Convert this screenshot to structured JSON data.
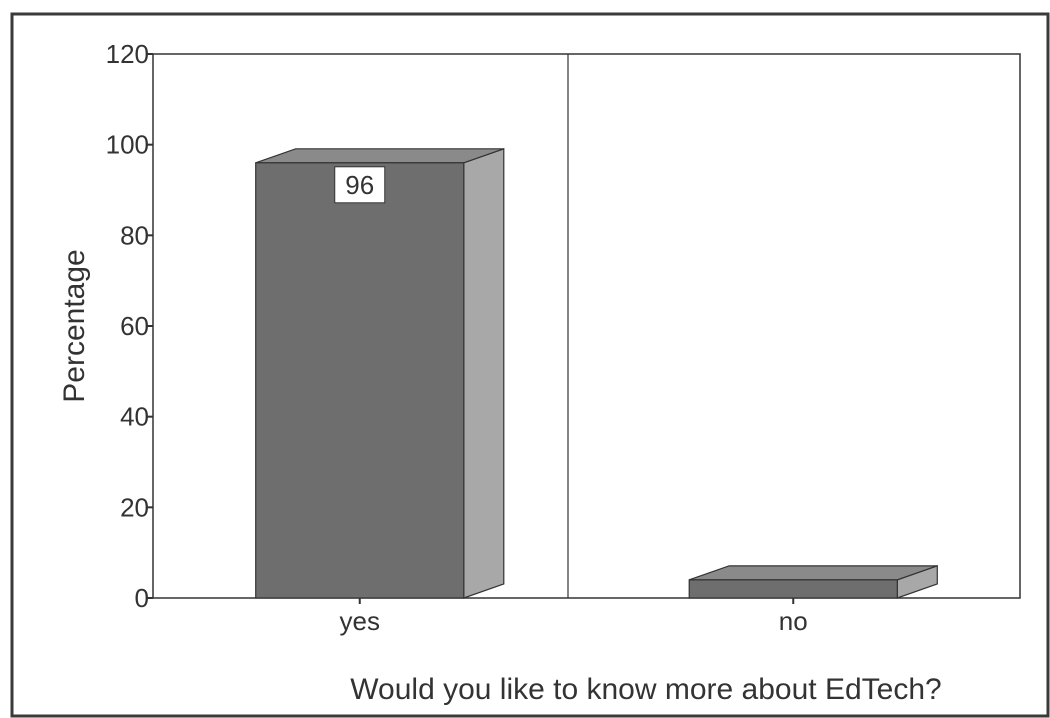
{
  "chart_data": {
    "type": "bar",
    "title": "",
    "xlabel": "Would you like to know more about EdTech?",
    "ylabel": "Percentage",
    "categories": [
      "yes",
      "no"
    ],
    "values": [
      96,
      4
    ],
    "data_labels": [
      "96",
      ""
    ],
    "ylim": [
      0,
      120
    ],
    "yticks": [
      "0",
      "20",
      "40",
      "60",
      "80",
      "100",
      "120"
    ],
    "grid": false,
    "legend": "none",
    "style": "3d",
    "colors": {
      "bar_front": "#6e6e6e",
      "bar_side": "#a8a8a8",
      "bar_top": "#8a8a8a",
      "axis": "#333333",
      "frame": "#3a3a3a"
    }
  }
}
